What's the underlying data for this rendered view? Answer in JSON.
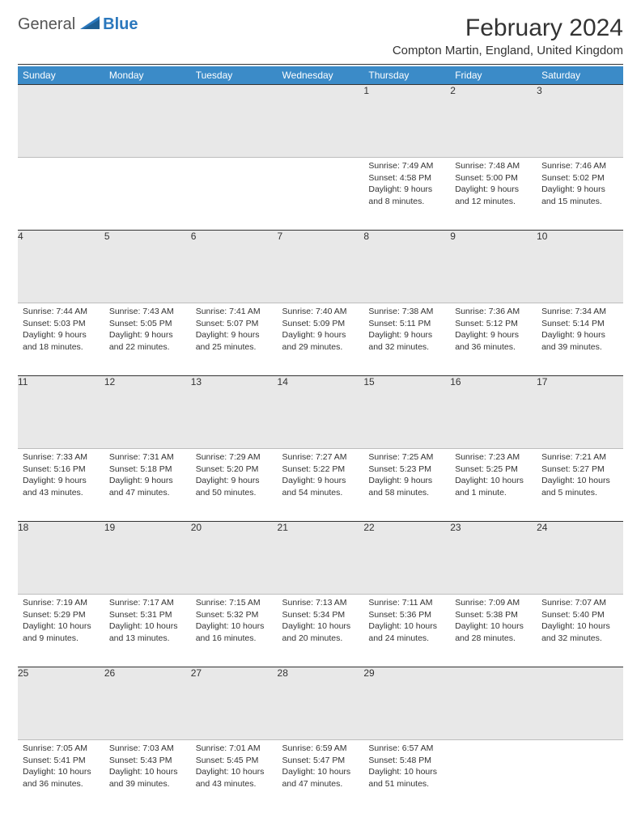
{
  "logo": {
    "general": "General",
    "blue": "Blue"
  },
  "title": "February 2024",
  "location": "Compton Martin, England, United Kingdom",
  "colors": {
    "header_bg": "#3b8bc8",
    "header_text": "#ffffff",
    "daynum_bg": "#e8e8e8",
    "rule": "#333333",
    "text": "#333333",
    "logo_blue": "#2b78bd"
  },
  "typography": {
    "title_fontsize": 30,
    "location_fontsize": 15,
    "dow_fontsize": 12,
    "cell_fontsize": 10.5
  },
  "layout": {
    "cols": 7,
    "rows": 5,
    "first_weekday_index": 4,
    "days_in_month": 29
  },
  "daysOfWeek": [
    "Sunday",
    "Monday",
    "Tuesday",
    "Wednesday",
    "Thursday",
    "Friday",
    "Saturday"
  ],
  "days": [
    {
      "n": 1,
      "sunrise": "7:49 AM",
      "sunset": "4:58 PM",
      "daylight": "9 hours and 8 minutes."
    },
    {
      "n": 2,
      "sunrise": "7:48 AM",
      "sunset": "5:00 PM",
      "daylight": "9 hours and 12 minutes."
    },
    {
      "n": 3,
      "sunrise": "7:46 AM",
      "sunset": "5:02 PM",
      "daylight": "9 hours and 15 minutes."
    },
    {
      "n": 4,
      "sunrise": "7:44 AM",
      "sunset": "5:03 PM",
      "daylight": "9 hours and 18 minutes."
    },
    {
      "n": 5,
      "sunrise": "7:43 AM",
      "sunset": "5:05 PM",
      "daylight": "9 hours and 22 minutes."
    },
    {
      "n": 6,
      "sunrise": "7:41 AM",
      "sunset": "5:07 PM",
      "daylight": "9 hours and 25 minutes."
    },
    {
      "n": 7,
      "sunrise": "7:40 AM",
      "sunset": "5:09 PM",
      "daylight": "9 hours and 29 minutes."
    },
    {
      "n": 8,
      "sunrise": "7:38 AM",
      "sunset": "5:11 PM",
      "daylight": "9 hours and 32 minutes."
    },
    {
      "n": 9,
      "sunrise": "7:36 AM",
      "sunset": "5:12 PM",
      "daylight": "9 hours and 36 minutes."
    },
    {
      "n": 10,
      "sunrise": "7:34 AM",
      "sunset": "5:14 PM",
      "daylight": "9 hours and 39 minutes."
    },
    {
      "n": 11,
      "sunrise": "7:33 AM",
      "sunset": "5:16 PM",
      "daylight": "9 hours and 43 minutes."
    },
    {
      "n": 12,
      "sunrise": "7:31 AM",
      "sunset": "5:18 PM",
      "daylight": "9 hours and 47 minutes."
    },
    {
      "n": 13,
      "sunrise": "7:29 AM",
      "sunset": "5:20 PM",
      "daylight": "9 hours and 50 minutes."
    },
    {
      "n": 14,
      "sunrise": "7:27 AM",
      "sunset": "5:22 PM",
      "daylight": "9 hours and 54 minutes."
    },
    {
      "n": 15,
      "sunrise": "7:25 AM",
      "sunset": "5:23 PM",
      "daylight": "9 hours and 58 minutes."
    },
    {
      "n": 16,
      "sunrise": "7:23 AM",
      "sunset": "5:25 PM",
      "daylight": "10 hours and 1 minute."
    },
    {
      "n": 17,
      "sunrise": "7:21 AM",
      "sunset": "5:27 PM",
      "daylight": "10 hours and 5 minutes."
    },
    {
      "n": 18,
      "sunrise": "7:19 AM",
      "sunset": "5:29 PM",
      "daylight": "10 hours and 9 minutes."
    },
    {
      "n": 19,
      "sunrise": "7:17 AM",
      "sunset": "5:31 PM",
      "daylight": "10 hours and 13 minutes."
    },
    {
      "n": 20,
      "sunrise": "7:15 AM",
      "sunset": "5:32 PM",
      "daylight": "10 hours and 16 minutes."
    },
    {
      "n": 21,
      "sunrise": "7:13 AM",
      "sunset": "5:34 PM",
      "daylight": "10 hours and 20 minutes."
    },
    {
      "n": 22,
      "sunrise": "7:11 AM",
      "sunset": "5:36 PM",
      "daylight": "10 hours and 24 minutes."
    },
    {
      "n": 23,
      "sunrise": "7:09 AM",
      "sunset": "5:38 PM",
      "daylight": "10 hours and 28 minutes."
    },
    {
      "n": 24,
      "sunrise": "7:07 AM",
      "sunset": "5:40 PM",
      "daylight": "10 hours and 32 minutes."
    },
    {
      "n": 25,
      "sunrise": "7:05 AM",
      "sunset": "5:41 PM",
      "daylight": "10 hours and 36 minutes."
    },
    {
      "n": 26,
      "sunrise": "7:03 AM",
      "sunset": "5:43 PM",
      "daylight": "10 hours and 39 minutes."
    },
    {
      "n": 27,
      "sunrise": "7:01 AM",
      "sunset": "5:45 PM",
      "daylight": "10 hours and 43 minutes."
    },
    {
      "n": 28,
      "sunrise": "6:59 AM",
      "sunset": "5:47 PM",
      "daylight": "10 hours and 47 minutes."
    },
    {
      "n": 29,
      "sunrise": "6:57 AM",
      "sunset": "5:48 PM",
      "daylight": "10 hours and 51 minutes."
    }
  ],
  "labels": {
    "sunrise": "Sunrise:",
    "sunset": "Sunset:",
    "daylight": "Daylight:"
  }
}
